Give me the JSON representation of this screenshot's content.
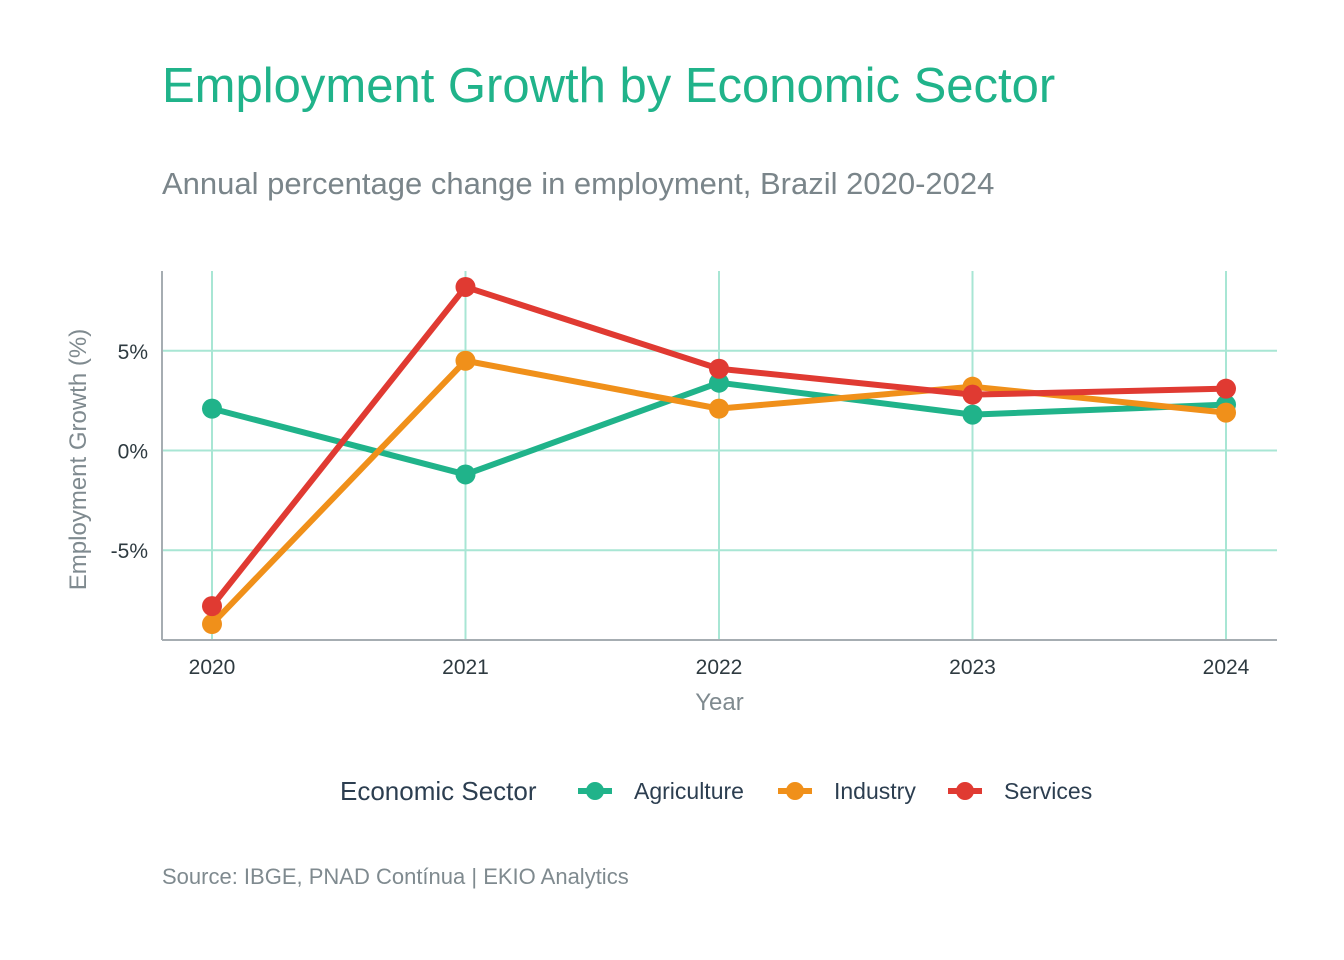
{
  "title": "Employment Growth by Economic Sector",
  "subtitle": "Annual percentage change in employment, Brazil 2020-2024",
  "source": "Source: IBGE, PNAD Contínua | EKIO Analytics",
  "chart_data": {
    "type": "line",
    "x": [
      2020,
      2021,
      2022,
      2023,
      2024
    ],
    "xtick_labels": [
      "2020",
      "2021",
      "2022",
      "2023",
      "2024"
    ],
    "xlabel": "Year",
    "ylabel": "Employment Growth (%)",
    "ylim": [
      -9.5,
      9
    ],
    "yticks": [
      -5,
      0,
      5
    ],
    "ytick_labels": [
      "-5%",
      "0%",
      "5%"
    ],
    "grid": true,
    "grid_color": "#a8e6d4",
    "legend": {
      "title": "Economic Sector",
      "placement": "bottom"
    },
    "series": [
      {
        "name": "Agriculture",
        "color": "#20b38a",
        "values": [
          2.1,
          -1.2,
          3.4,
          1.8,
          2.3
        ]
      },
      {
        "name": "Industry",
        "color": "#f0901a",
        "values": [
          -8.7,
          4.5,
          2.1,
          3.2,
          1.9
        ]
      },
      {
        "name": "Services",
        "color": "#e03a32",
        "values": [
          -7.8,
          8.2,
          4.1,
          2.8,
          3.1
        ]
      }
    ]
  }
}
